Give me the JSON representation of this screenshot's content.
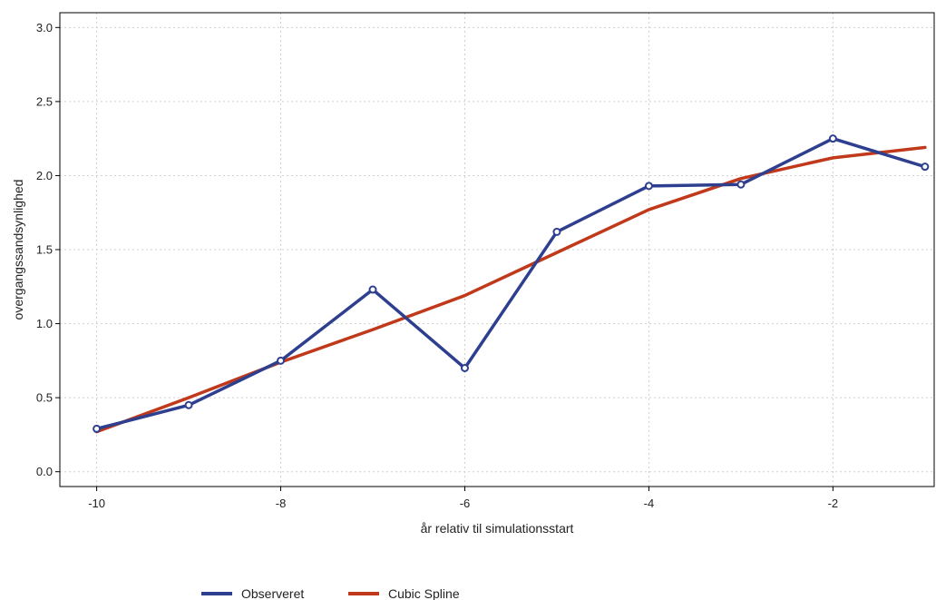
{
  "chart_data": {
    "type": "line",
    "title": "",
    "xlabel": "år relativ til simulationsstart",
    "ylabel": "overgangssandsynlighed",
    "xlim": [
      -10.4,
      -0.9
    ],
    "ylim": [
      -0.1,
      3.1
    ],
    "xticks": [
      -10,
      -8,
      -6,
      -4,
      -2
    ],
    "xtick_labels": [
      "-10",
      "-8",
      "-6",
      "-4",
      "-2"
    ],
    "yticks": [
      0.0,
      0.5,
      1.0,
      1.5,
      2.0,
      2.5,
      3.0
    ],
    "ytick_labels": [
      "0.0",
      "0.5",
      "1.0",
      "1.5",
      "2.0",
      "2.5",
      "3.0"
    ],
    "grid": true,
    "legend_position": "bottom-left",
    "series": [
      {
        "name": "Observeret",
        "color": "#2e3f8f",
        "markers": true,
        "x": [
          -10,
          -9,
          -8,
          -7,
          -6,
          -5,
          -4,
          -3,
          -2,
          -1
        ],
        "y": [
          0.29,
          0.45,
          0.75,
          1.23,
          0.7,
          1.62,
          1.93,
          1.94,
          2.25,
          2.06
        ]
      },
      {
        "name": "Cubic Spline",
        "color": "#c0391b",
        "markers": false,
        "x": [
          -10,
          -9,
          -8,
          -7,
          -6,
          -5,
          -4,
          -3,
          -2,
          -1
        ],
        "y": [
          0.27,
          0.5,
          0.74,
          0.96,
          1.19,
          1.48,
          1.77,
          1.98,
          2.12,
          2.19
        ]
      }
    ]
  }
}
